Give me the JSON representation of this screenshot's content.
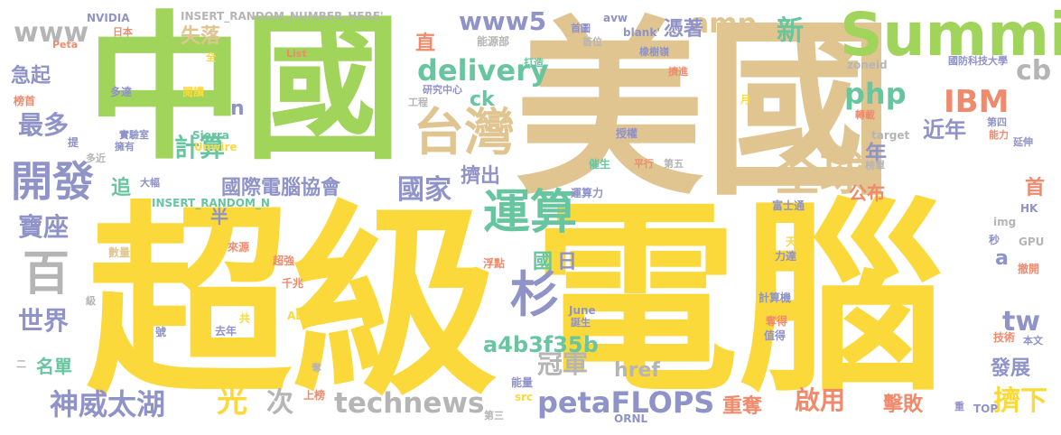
{
  "words": [
    {
      "text": "超級",
      "color": "#fcd93b"
    },
    {
      "text": "電腦",
      "color": "#fcd93b"
    },
    {
      "text": "美國",
      "color": "#e1c591"
    },
    {
      "text": "中國",
      "color": "#a1d45b"
    },
    {
      "text": "Summit",
      "color": "#a1d45b"
    },
    {
      "text": "台灣",
      "color": "#e1c591"
    },
    {
      "text": "全球",
      "color": "#e1c591"
    },
    {
      "text": "運算",
      "color": "#67c59f"
    },
    {
      "text": "開發",
      "color": "#8f93c8"
    },
    {
      "text": "delivery",
      "color": "#67c59f"
    },
    {
      "text": "petaFLOPS",
      "color": "#8f93c8"
    },
    {
      "text": "technews",
      "color": "#b5b5b5"
    },
    {
      "text": "神威太湖",
      "color": "#8f93c8"
    },
    {
      "text": "國際電腦協會",
      "color": "#8f93c8"
    },
    {
      "text": "國家",
      "color": "#8f93c8"
    },
    {
      "text": "a4b3f35b",
      "color": "#67c59f"
    },
    {
      "text": "IBM",
      "color": "#f08a6d"
    },
    {
      "text": "php",
      "color": "#67c59f"
    },
    {
      "text": "amp",
      "color": "#e1c591"
    },
    {
      "text": "www5",
      "color": "#8f93c8"
    },
    {
      "text": "www",
      "color": "#b5b5b5"
    },
    {
      "text": "計算",
      "color": "#67c59f"
    },
    {
      "text": "最多",
      "color": "#8f93c8"
    },
    {
      "text": "寶座",
      "color": "#8f93c8"
    },
    {
      "text": "世界",
      "color": "#8f93c8"
    },
    {
      "text": "冠軍",
      "color": "#b5b5b5"
    },
    {
      "text": "啟用",
      "color": "#f08a6d"
    },
    {
      "text": "重奪",
      "color": "#f08a6d"
    },
    {
      "text": "擠下",
      "color": "#fcd93b"
    },
    {
      "text": "擠出",
      "color": "#8f93c8"
    },
    {
      "text": "擊敗",
      "color": "#f08a6d"
    },
    {
      "text": "發展",
      "color": "#8f93c8"
    },
    {
      "text": "近年",
      "color": "#8f93c8"
    },
    {
      "text": "年",
      "color": "#8f93c8"
    },
    {
      "text": "公布",
      "color": "#f08a6d"
    },
    {
      "text": "憑著",
      "color": "#8f93c8"
    },
    {
      "text": "失落",
      "color": "#e1c591"
    },
    {
      "text": "急起",
      "color": "#8f93c8"
    },
    {
      "text": "名單",
      "color": "#67c59f"
    },
    {
      "text": "光",
      "color": "#fcd93b"
    },
    {
      "text": "次",
      "color": "#b5b5b5"
    },
    {
      "text": "href",
      "color": "#b5b5b5"
    },
    {
      "text": "tw",
      "color": "#8f93c8"
    },
    {
      "text": "cb",
      "color": "#b5b5b5"
    },
    {
      "text": "ck",
      "color": "#67c59f"
    },
    {
      "text": "直",
      "color": "#f08a6d"
    },
    {
      "text": "新",
      "color": "#67c59f"
    },
    {
      "text": "首",
      "color": "#f08a6d"
    },
    {
      "text": "追",
      "color": "#67c59f"
    },
    {
      "text": "半",
      "color": "#8f93c8"
    },
    {
      "text": "n",
      "color": "#8f93c8"
    },
    {
      "text": "a",
      "color": "#8f93c8"
    },
    {
      "text": "國",
      "color": "#67c59f"
    },
    {
      "text": "日",
      "color": "#8f93c8"
    },
    {
      "text": "NVIDIA",
      "color": "#8f93c8"
    },
    {
      "text": "INSERT_RANDOM_NUMBER_HERE'",
      "color": "#b5b5b5"
    },
    {
      "text": "INSERT_RANDOM_N",
      "color": "#67c59f"
    },
    {
      "text": "Peta",
      "color": "#f08a6d"
    },
    {
      "text": "List",
      "color": "#f08a6d"
    },
    {
      "text": "能源部",
      "color": "#b5b5b5"
    },
    {
      "text": "研究中心",
      "color": "#8f93c8"
    },
    {
      "text": "工程",
      "color": "#b5b5b5"
    },
    {
      "text": "Sierra",
      "color": "#67c59f"
    },
    {
      "text": "Unwire",
      "color": "#fcd93b"
    },
    {
      "text": "實驗室",
      "color": "#8f93c8"
    },
    {
      "text": "擁有",
      "color": "#8f93c8"
    },
    {
      "text": "多近",
      "color": "#b5b5b5"
    },
    {
      "text": "多達",
      "color": "#8f93c8"
    },
    {
      "text": "閱讀",
      "color": "#fcd93b"
    },
    {
      "text": "榜首",
      "color": "#f08a6d"
    },
    {
      "text": "提",
      "color": "#8f93c8"
    },
    {
      "text": "大幅",
      "color": "#8f93c8"
    },
    {
      "text": "日本",
      "color": "#f08a6d"
    },
    {
      "text": "全",
      "color": "#fcd93b"
    },
    {
      "text": "avw",
      "color": "#8f93c8"
    },
    {
      "text": "首圖",
      "color": "#8f93c8"
    },
    {
      "text": "首位",
      "color": "#b5b5b5"
    },
    {
      "text": "blank'",
      "color": "#8f93c8"
    },
    {
      "text": "橡樹嶺",
      "color": "#8f93c8"
    },
    {
      "text": "打造",
      "color": "#67c59f"
    },
    {
      "text": "擠進",
      "color": "#f08a6d"
    },
    {
      "text": "月",
      "color": "#fcd93b"
    },
    {
      "text": "zoneid",
      "color": "#b5b5b5"
    },
    {
      "text": "國防科技大學",
      "color": "#8f93c8"
    },
    {
      "text": "轉載",
      "color": "#f08a6d"
    },
    {
      "text": "第四",
      "color": "#8f93c8"
    },
    {
      "text": "能力",
      "color": "#f08a6d"
    },
    {
      "text": "延伸",
      "color": "#8f93c8"
    },
    {
      "text": "target",
      "color": "#b5b5b5"
    },
    {
      "text": "授權",
      "color": "#8f93c8"
    },
    {
      "text": "催生",
      "color": "#67c59f"
    },
    {
      "text": "平行",
      "color": "#f08a6d"
    },
    {
      "text": "第五",
      "color": "#b5b5b5"
    },
    {
      "text": "榜單",
      "color": "#b5b5b5"
    },
    {
      "text": "運算力",
      "color": "#8f93c8"
    },
    {
      "text": "富士通",
      "color": "#8f93c8"
    },
    {
      "text": "HK",
      "color": "#8f93c8"
    },
    {
      "text": "img",
      "color": "#b5b5b5"
    },
    {
      "text": "天河",
      "color": "#fcd93b"
    },
    {
      "text": "力達",
      "color": "#8f93c8"
    },
    {
      "text": "秒",
      "color": "#8f93c8"
    },
    {
      "text": "GPU",
      "color": "#b5b5b5"
    },
    {
      "text": "撤開",
      "color": "#f08a6d"
    },
    {
      "text": "數量",
      "color": "#e1c591"
    },
    {
      "text": "來源",
      "color": "#f08a6d"
    },
    {
      "text": "超強",
      "color": "#f08a6d"
    },
    {
      "text": "浮點",
      "color": "#f08a6d"
    },
    {
      "text": "千兆",
      "color": "#f08a6d"
    },
    {
      "text": "計算機",
      "color": "#8f93c8"
    },
    {
      "text": "級",
      "color": "#b5b5b5"
    },
    {
      "text": "共",
      "color": "#fcd93b"
    },
    {
      "text": "去年",
      "color": "#8f93c8"
    },
    {
      "text": "ABCI",
      "color": "#fcd93b"
    },
    {
      "text": "號",
      "color": "#8f93c8"
    },
    {
      "text": "June",
      "color": "#8f93c8"
    },
    {
      "text": "誕生",
      "color": "#8f93c8"
    },
    {
      "text": "奪得",
      "color": "#f08a6d"
    },
    {
      "text": "值得",
      "color": "#8f93c8"
    },
    {
      "text": "技術",
      "color": "#f08a6d"
    },
    {
      "text": "本文",
      "color": "#8f93c8"
    },
    {
      "text": "二",
      "color": "#b5b5b5"
    },
    {
      "text": "奪",
      "color": "#b5b5b5"
    },
    {
      "text": "上榜",
      "color": "#f08a6d"
    },
    {
      "text": "能量",
      "color": "#8f93c8"
    },
    {
      "text": "src",
      "color": "#fcd93b"
    },
    {
      "text": "第三",
      "color": "#b5b5b5"
    },
    {
      "text": "ORNL",
      "color": "#8f93c8"
    },
    {
      "text": "重",
      "color": "#8f93c8"
    },
    {
      "text": "TOP",
      "color": "#8f93c8"
    },
    {
      "text": "台",
      "color": "#8f93c8"
    },
    {
      "text": "強",
      "color": "#8f93c8"
    },
    {
      "text": "名",
      "color": "#e1c591"
    },
    {
      "text": "杉",
      "color": "#8f93c8"
    },
    {
      "text": "百",
      "color": "#b5b5b5"
    }
  ]
}
